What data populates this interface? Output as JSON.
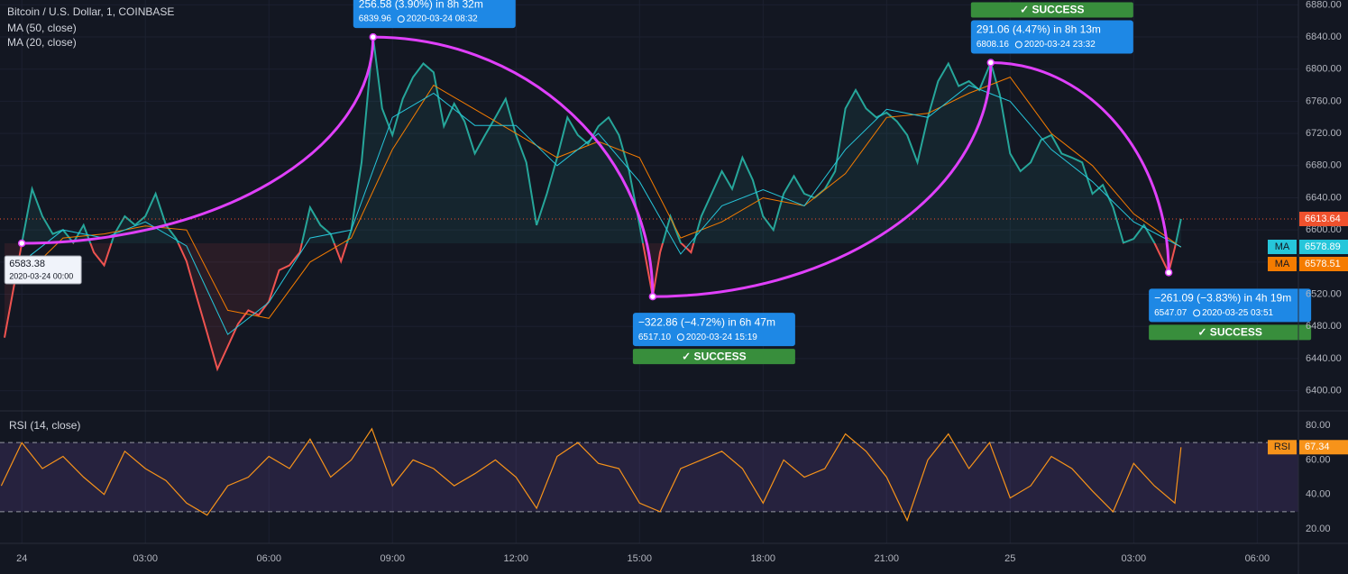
{
  "header": {
    "symbol": "Bitcoin / U.S. Dollar, 1, COINBASE"
  },
  "chart_data": [
    {
      "type": "baseline",
      "xlim": [
        -0.53,
        31.0
      ],
      "ylim": [
        6376,
        6886
      ],
      "xticks": [
        {
          "value": 0,
          "label": "24"
        },
        {
          "value": 3,
          "label": "03:00"
        },
        {
          "value": 6,
          "label": "06:00"
        },
        {
          "value": 9,
          "label": "09:00"
        },
        {
          "value": 12,
          "label": "12:00"
        },
        {
          "value": 15,
          "label": "15:00"
        },
        {
          "value": 18,
          "label": "18:00"
        },
        {
          "value": 21,
          "label": "21:00"
        },
        {
          "value": 24,
          "label": "25"
        },
        {
          "value": 27,
          "label": "03:00"
        },
        {
          "value": 30,
          "label": "06:00"
        }
      ],
      "yticks": [
        {
          "value": 6400,
          "label": "6400.00"
        },
        {
          "value": 6440,
          "label": "6440.00"
        },
        {
          "value": 6480,
          "label": "6480.00"
        },
        {
          "value": 6520,
          "label": "6520.00"
        },
        {
          "value": 6560,
          "label": "6560.00"
        },
        {
          "value": 6600,
          "label": "6600.00"
        },
        {
          "value": 6640,
          "label": "6640.00"
        },
        {
          "value": 6680,
          "label": "6680.00"
        },
        {
          "value": 6720,
          "label": "6720.00"
        },
        {
          "value": 6760,
          "label": "6760.00"
        },
        {
          "value": 6800,
          "label": "6800.00"
        },
        {
          "value": 6840,
          "label": "6840.00"
        },
        {
          "value": 6880,
          "label": "6880.00"
        }
      ],
      "grid": true,
      "base": 6583.38,
      "up_color": "#26a69a",
      "down_color": "#ef5350",
      "last_color": "#f0512d",
      "x": [
        -0.42,
        0,
        0.25,
        0.5,
        0.75,
        1,
        1.25,
        1.5,
        1.75,
        2,
        2.25,
        2.5,
        2.75,
        3,
        3.25,
        3.5,
        3.75,
        4,
        4.25,
        4.5,
        4.75,
        5,
        5.25,
        5.5,
        5.75,
        6,
        6.25,
        6.5,
        6.75,
        7,
        7.25,
        7.5,
        7.75,
        8,
        8.25,
        8.53,
        8.75,
        9,
        9.25,
        9.5,
        9.75,
        10,
        10.25,
        10.5,
        10.75,
        11,
        11.25,
        11.5,
        11.75,
        12,
        12.25,
        12.5,
        12.75,
        13,
        13.25,
        13.5,
        13.75,
        14,
        14.25,
        14.5,
        14.75,
        15,
        15.32,
        15.5,
        15.75,
        16,
        16.25,
        16.5,
        16.75,
        17,
        17.25,
        17.5,
        17.75,
        18,
        18.25,
        18.5,
        18.75,
        19,
        19.25,
        19.5,
        19.75,
        20,
        20.25,
        20.5,
        20.75,
        21,
        21.25,
        21.5,
        21.75,
        22,
        22.25,
        22.5,
        22.75,
        23,
        23.25,
        23.53,
        23.75,
        24,
        24.25,
        24.5,
        24.75,
        25,
        25.25,
        25.5,
        25.75,
        26,
        26.25,
        26.5,
        26.75,
        27,
        27.25,
        27.5,
        27.85,
        28,
        28.15
      ],
      "values": [
        6466,
        6583.38,
        6651,
        6617,
        6595,
        6600,
        6584,
        6606,
        6572,
        6556,
        6595,
        6617,
        6606,
        6617,
        6645,
        6606,
        6589,
        6561,
        6516,
        6472,
        6427,
        6455,
        6483,
        6500,
        6494,
        6511,
        6550,
        6556,
        6572,
        6628,
        6606,
        6595,
        6561,
        6600,
        6684,
        6839.96,
        6751,
        6718,
        6763,
        6790,
        6807,
        6796,
        6729,
        6757,
        6735,
        6695,
        6718,
        6740,
        6763,
        6718,
        6684,
        6606,
        6645,
        6690,
        6740,
        6718,
        6707,
        6729,
        6740,
        6718,
        6673,
        6606,
        6517.1,
        6572,
        6617,
        6584,
        6572,
        6617,
        6645,
        6673,
        6651,
        6690,
        6662,
        6617,
        6600,
        6645,
        6667,
        6645,
        6640,
        6651,
        6673,
        6751,
        6774,
        6751,
        6740,
        6746,
        6735,
        6718,
        6684,
        6740,
        6785,
        6807,
        6779,
        6785,
        6774,
        6808.16,
        6768,
        6695,
        6673,
        6684,
        6712,
        6718,
        6695,
        6690,
        6684,
        6645,
        6656,
        6628,
        6584,
        6589,
        6606,
        6584,
        6547.07,
        6578,
        6613.64
      ],
      "series": [
        {
          "name": "MA (50, close)",
          "tag": "MA",
          "color": "#f57c00",
          "x": [
            0,
            1,
            2,
            3,
            4,
            5,
            6,
            7,
            8,
            9,
            10,
            11,
            12,
            13,
            14,
            15,
            16,
            17,
            18,
            19,
            20,
            21,
            22,
            23,
            24,
            25,
            26,
            27,
            28.15
          ],
          "values": [
            6540,
            6590,
            6595,
            6605,
            6600,
            6500,
            6490,
            6560,
            6590,
            6700,
            6780,
            6750,
            6720,
            6690,
            6710,
            6690,
            6590,
            6610,
            6640,
            6630,
            6670,
            6740,
            6745,
            6770,
            6790,
            6720,
            6680,
            6620,
            6578.51
          ]
        },
        {
          "name": "MA (20, close)",
          "tag": "MA",
          "color": "#26c6da",
          "x": [
            0,
            1,
            2,
            3,
            4,
            5,
            6,
            7,
            8,
            9,
            10,
            11,
            12,
            13,
            14,
            15,
            16,
            17,
            18,
            19,
            20,
            21,
            22,
            23,
            24,
            25,
            26,
            27,
            28.15
          ],
          "values": [
            6560,
            6600,
            6590,
            6610,
            6580,
            6470,
            6510,
            6590,
            6600,
            6740,
            6770,
            6730,
            6730,
            6680,
            6720,
            6660,
            6570,
            6630,
            6650,
            6630,
            6700,
            6750,
            6740,
            6780,
            6760,
            6700,
            6660,
            6610,
            6578.89
          ]
        }
      ],
      "measures": {
        "color": "#e040fb",
        "box_color": "#1e88e5",
        "status_color": "#388e3c",
        "points": [
          {
            "x": 0,
            "price": 6583.38,
            "time": "2020-03-24 00:00"
          },
          {
            "x": 8.53,
            "price": 6839.96,
            "time": "2020-03-24  08:32",
            "change": "256.58 (3.90%) in 8h 32m"
          },
          {
            "x": 15.32,
            "price": 6517.1,
            "price_label": "6517.10",
            "time": "2020-03-24  15:19",
            "change": "−322.86 (−4.72%) in 6h 47m",
            "status": "✓ SUCCESS"
          },
          {
            "x": 23.53,
            "price": 6808.16,
            "time": "2020-03-24  23:32",
            "change": "291.06 (4.47%) in 8h 13m",
            "status": "✓ SUCCESS"
          },
          {
            "x": 27.85,
            "price": 6547.07,
            "time": "2020-03-25  03:51",
            "change": "−261.09 (−3.83%) in 4h 19m",
            "status": "✓ SUCCESS"
          }
        ]
      }
    },
    {
      "type": "line",
      "title": "RSI (14, close)",
      "tag": "RSI",
      "color": "#f7931a",
      "xlim": [
        -0.53,
        31.0
      ],
      "ylim": [
        11.7,
        87.3
      ],
      "yticks": [
        {
          "value": 20,
          "label": "20.00"
        },
        {
          "value": 40,
          "label": "40.00"
        },
        {
          "value": 60,
          "label": "60.00"
        },
        {
          "value": 80,
          "label": "80.00"
        }
      ],
      "bands": [
        30,
        70
      ],
      "band_color": "#7e57c2",
      "x": [
        -0.5,
        0,
        0.5,
        1,
        1.5,
        2,
        2.5,
        3,
        3.5,
        4,
        4.5,
        5,
        5.5,
        6,
        6.5,
        7,
        7.5,
        8,
        8.5,
        9,
        9.5,
        10,
        10.5,
        11,
        11.5,
        12,
        12.5,
        13,
        13.5,
        14,
        14.5,
        15,
        15.5,
        16,
        16.5,
        17,
        17.5,
        18,
        18.5,
        19,
        19.5,
        20,
        20.5,
        21,
        21.5,
        22,
        22.5,
        23,
        23.5,
        24,
        24.5,
        25,
        25.5,
        26,
        26.5,
        27,
        27.5,
        28,
        28.15
      ],
      "values": [
        45,
        70,
        55,
        62,
        50,
        40,
        65,
        55,
        48,
        35,
        28,
        45,
        50,
        62,
        55,
        72,
        50,
        60,
        78,
        45,
        60,
        55,
        45,
        52,
        60,
        50,
        32,
        62,
        70,
        58,
        55,
        35,
        30,
        55,
        60,
        65,
        55,
        35,
        60,
        50,
        55,
        75,
        65,
        50,
        25,
        60,
        75,
        55,
        70,
        38,
        45,
        62,
        55,
        42,
        30,
        58,
        45,
        35,
        67.34
      ]
    }
  ]
}
